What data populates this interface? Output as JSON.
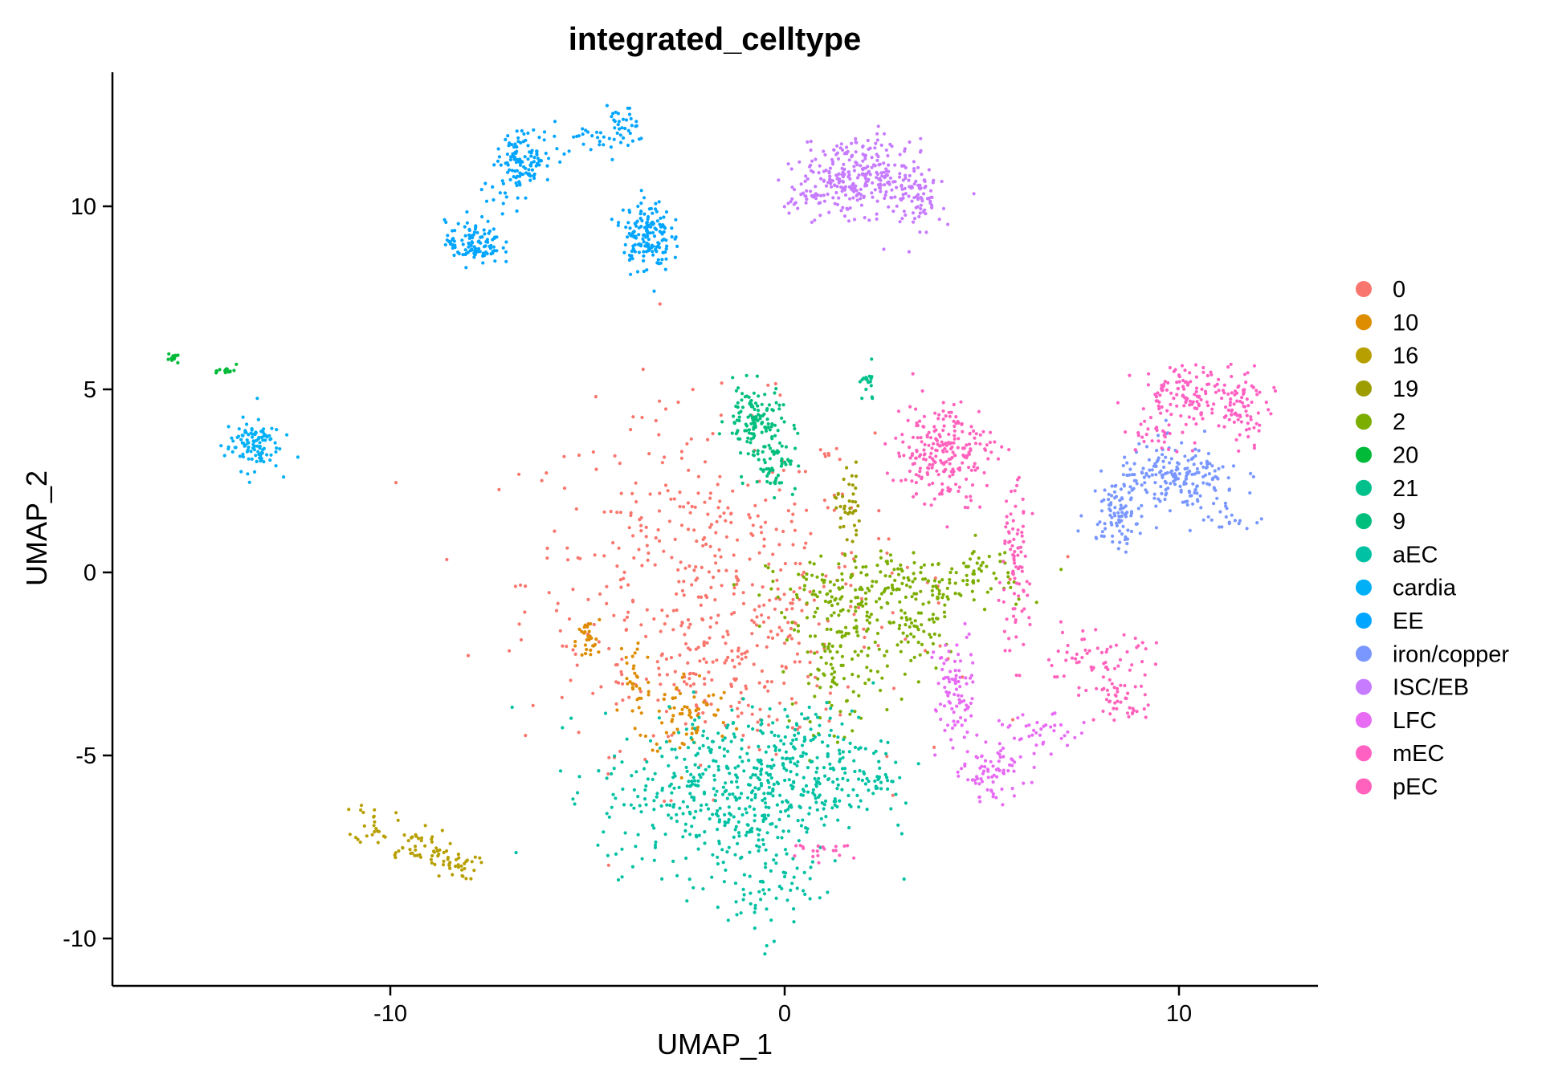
{
  "chart_data": {
    "type": "scatter",
    "title": "integrated_celltype",
    "xlabel": "UMAP_1",
    "ylabel": "UMAP_2",
    "xlim": [
      -17.2,
      13.5
    ],
    "ylim": [
      -11.2,
      13.7
    ],
    "xticks": [
      -10,
      0,
      10
    ],
    "xtick_labels": [
      "-10",
      "0",
      "10"
    ],
    "yticks": [
      -10,
      -5,
      0,
      5,
      10
    ],
    "ytick_labels": [
      "-10",
      "-5",
      "0",
      "5",
      "10"
    ],
    "grid": false,
    "legend_position": "right",
    "series": [
      {
        "name": "0",
        "color": "#F8766D",
        "clusters": [
          {
            "x": -2.2,
            "y": -0.2,
            "sx": 2.2,
            "sy": 2.3,
            "n": 420
          },
          {
            "x": -1.0,
            "y": -2.6,
            "sx": 1.4,
            "sy": 0.9,
            "n": 110
          },
          {
            "x": 1.5,
            "y": -1.0,
            "sx": 1.8,
            "sy": 1.8,
            "n": 40
          }
        ]
      },
      {
        "name": "10",
        "color": "#DE8C00",
        "clusters": [
          {
            "x": -5.0,
            "y": -1.9,
            "sx": 0.15,
            "sy": 0.3,
            "n": 30
          },
          {
            "x": -3.8,
            "y": -3.0,
            "sx": 0.2,
            "sy": 0.8,
            "n": 30
          },
          {
            "x": -2.5,
            "y": -3.9,
            "sx": 0.6,
            "sy": 0.6,
            "n": 70
          }
        ]
      },
      {
        "name": "16",
        "color": "#B79F00",
        "clusters": [
          {
            "x": -10.4,
            "y": -6.8,
            "sx": 0.25,
            "sy": 0.3,
            "n": 25
          },
          {
            "x": -9.4,
            "y": -7.5,
            "sx": 0.45,
            "sy": 0.25,
            "n": 40
          },
          {
            "x": -8.4,
            "y": -8.0,
            "sx": 0.3,
            "sy": 0.2,
            "n": 35
          }
        ]
      },
      {
        "name": "19",
        "color": "#9D9C00",
        "clusters": [
          {
            "x": 1.6,
            "y": 1.8,
            "sx": 0.15,
            "sy": 0.6,
            "n": 40
          }
        ]
      },
      {
        "name": "2",
        "color": "#7CAE00",
        "clusters": [
          {
            "x": 1.6,
            "y": -0.7,
            "sx": 1.0,
            "sy": 0.6,
            "n": 120
          },
          {
            "x": 3.6,
            "y": -0.4,
            "sx": 1.3,
            "sy": 0.4,
            "n": 120
          },
          {
            "x": 1.4,
            "y": -2.5,
            "sx": 0.6,
            "sy": 0.9,
            "n": 110
          },
          {
            "x": 3.4,
            "y": -1.8,
            "sx": 0.3,
            "sy": 0.5,
            "n": 40
          },
          {
            "x": 5.0,
            "y": 0.2,
            "sx": 0.4,
            "sy": 0.3,
            "n": 30
          }
        ]
      },
      {
        "name": "20",
        "color": "#00BA38",
        "clusters": [
          {
            "x": -15.5,
            "y": 5.85,
            "sx": 0.1,
            "sy": 0.05,
            "n": 12
          },
          {
            "x": -14.1,
            "y": 5.5,
            "sx": 0.12,
            "sy": 0.08,
            "n": 14
          }
        ]
      },
      {
        "name": "21",
        "color": "#00C08B",
        "clusters": [
          {
            "x": 2.1,
            "y": 5.1,
            "sx": 0.12,
            "sy": 0.25,
            "n": 18
          }
        ]
      },
      {
        "name": "9",
        "color": "#00BF7D",
        "clusters": [
          {
            "x": -0.8,
            "y": 4.2,
            "sx": 0.35,
            "sy": 0.45,
            "n": 110
          },
          {
            "x": -0.3,
            "y": 3.2,
            "sx": 0.3,
            "sy": 0.5,
            "n": 70
          }
        ]
      },
      {
        "name": "aEC",
        "color": "#00C1A3",
        "clusters": [
          {
            "x": -1.5,
            "y": -6.0,
            "sx": 1.6,
            "sy": 1.1,
            "n": 420
          },
          {
            "x": 0.5,
            "y": -5.2,
            "sx": 1.1,
            "sy": 0.8,
            "n": 170
          },
          {
            "x": -0.6,
            "y": -8.4,
            "sx": 0.6,
            "sy": 0.8,
            "n": 80
          },
          {
            "x": 2.3,
            "y": -5.7,
            "sx": 0.35,
            "sy": 0.2,
            "n": 20
          }
        ]
      },
      {
        "name": "cardia",
        "color": "#00B0F6",
        "clusters": [
          {
            "x": -13.5,
            "y": 3.5,
            "sx": 0.35,
            "sy": 0.35,
            "n": 110
          }
        ]
      },
      {
        "name": "EE",
        "color": "#00A5FF",
        "clusters": [
          {
            "x": -7.9,
            "y": 9.0,
            "sx": 0.35,
            "sy": 0.3,
            "n": 110
          },
          {
            "x": -6.6,
            "y": 11.3,
            "sx": 0.35,
            "sy": 0.35,
            "n": 110
          },
          {
            "x": -3.5,
            "y": 9.2,
            "sx": 0.3,
            "sy": 0.5,
            "n": 160
          },
          {
            "x": -4.8,
            "y": 11.9,
            "sx": 0.7,
            "sy": 0.2,
            "n": 35
          },
          {
            "x": -4.1,
            "y": 12.2,
            "sx": 0.2,
            "sy": 0.25,
            "n": 25
          },
          {
            "x": -7.2,
            "y": 10.2,
            "sx": 0.3,
            "sy": 0.4,
            "n": 15
          }
        ]
      },
      {
        "name": "iron/copper",
        "color": "#7997FF",
        "clusters": [
          {
            "x": 10.0,
            "y": 2.5,
            "sx": 0.8,
            "sy": 0.5,
            "n": 200
          },
          {
            "x": 8.4,
            "y": 1.7,
            "sx": 0.35,
            "sy": 0.5,
            "n": 80
          },
          {
            "x": 11.2,
            "y": 1.4,
            "sx": 0.3,
            "sy": 0.1,
            "n": 15
          }
        ]
      },
      {
        "name": "ISC/EB",
        "color": "#C77CFF",
        "clusters": [
          {
            "x": 1.8,
            "y": 10.8,
            "sx": 0.7,
            "sy": 0.5,
            "n": 260
          },
          {
            "x": 3.3,
            "y": 10.3,
            "sx": 0.35,
            "sy": 0.55,
            "n": 90
          },
          {
            "x": 0.6,
            "y": 10.3,
            "sx": 0.3,
            "sy": 0.3,
            "n": 30
          }
        ]
      },
      {
        "name": "LFC",
        "color": "#E76BF3",
        "clusters": [
          {
            "x": 4.3,
            "y": -3.4,
            "sx": 0.25,
            "sy": 0.9,
            "n": 90
          },
          {
            "x": 5.3,
            "y": -5.5,
            "sx": 0.4,
            "sy": 0.35,
            "n": 70
          },
          {
            "x": 6.5,
            "y": -4.4,
            "sx": 0.5,
            "sy": 0.25,
            "n": 40
          }
        ]
      },
      {
        "name": "mEC",
        "color": "#FF61C3",
        "clusters": [
          {
            "x": 10.5,
            "y": 4.9,
            "sx": 0.8,
            "sy": 0.4,
            "n": 140
          },
          {
            "x": 11.7,
            "y": 4.4,
            "sx": 0.3,
            "sy": 0.4,
            "n": 50
          },
          {
            "x": 9.5,
            "y": 3.8,
            "sx": 0.4,
            "sy": 0.3,
            "n": 30
          }
        ]
      },
      {
        "name": "pEC",
        "color": "#FF62BC",
        "clusters": [
          {
            "x": 4.0,
            "y": 3.3,
            "sx": 0.6,
            "sy": 0.7,
            "n": 230
          },
          {
            "x": 5.8,
            "y": 0.0,
            "sx": 0.2,
            "sy": 1.2,
            "n": 90
          },
          {
            "x": 7.8,
            "y": -2.4,
            "sx": 0.8,
            "sy": 0.4,
            "n": 60
          },
          {
            "x": 8.4,
            "y": -3.3,
            "sx": 0.35,
            "sy": 0.3,
            "n": 30
          },
          {
            "x": 1.0,
            "y": -7.6,
            "sx": 0.4,
            "sy": 0.1,
            "n": 20
          },
          {
            "x": 8.9,
            "y": -3.8,
            "sx": 0.2,
            "sy": 0.1,
            "n": 12
          }
        ]
      }
    ]
  }
}
